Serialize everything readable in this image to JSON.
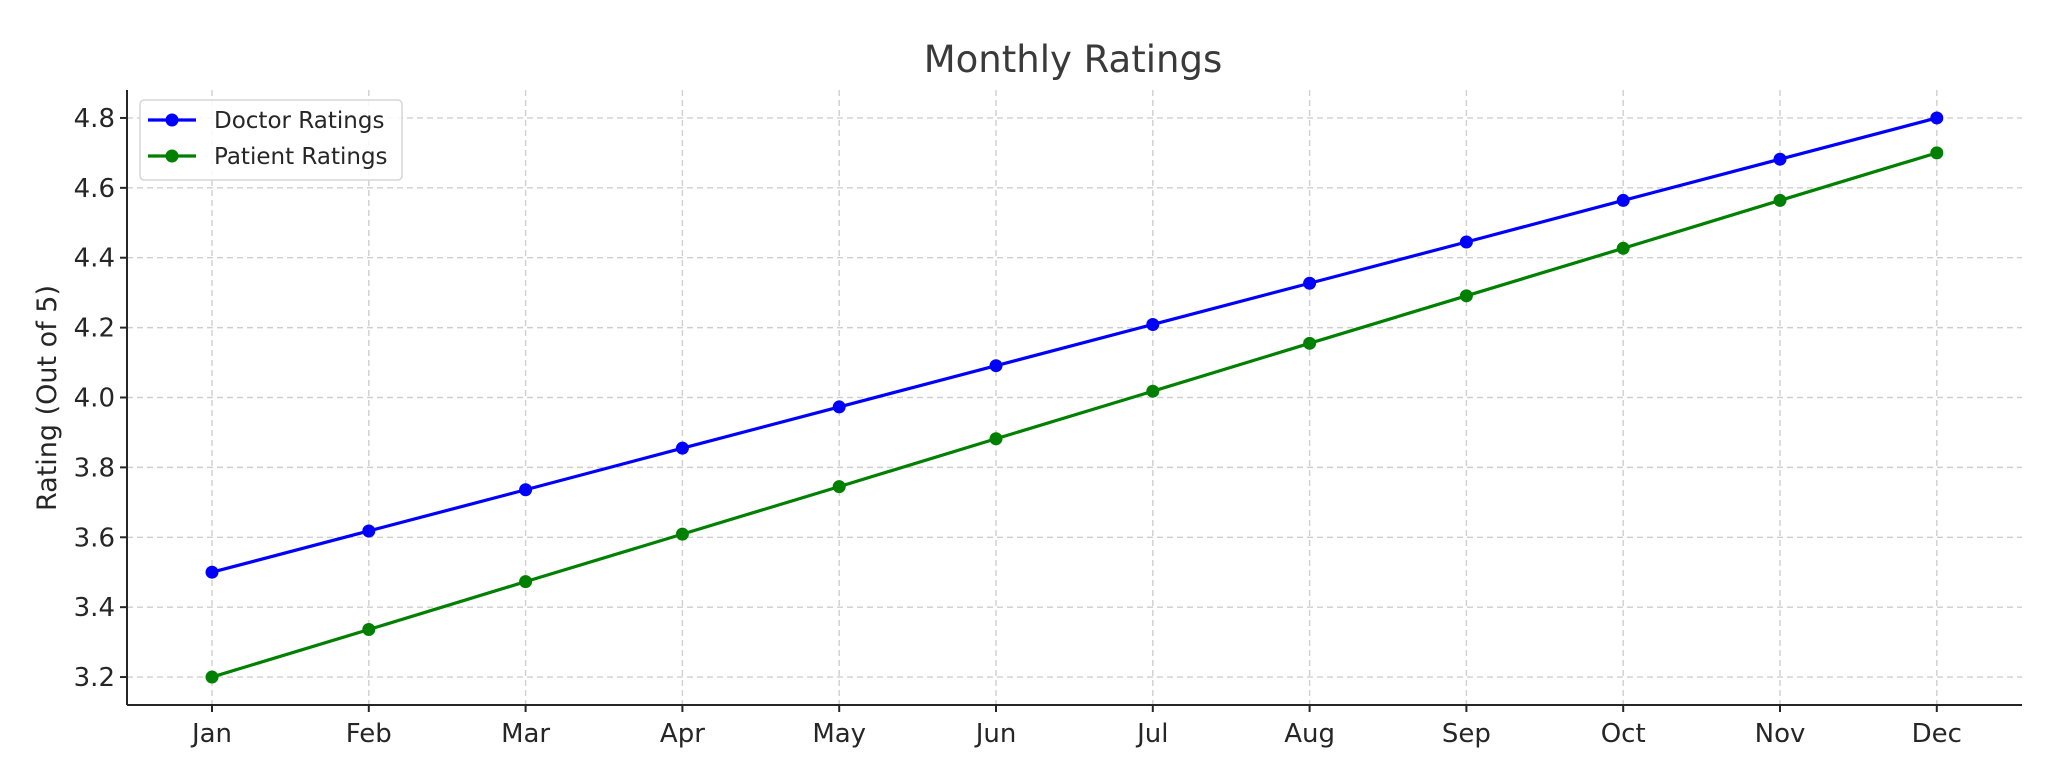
{
  "chart_data": {
    "type": "line",
    "title": "Monthly Ratings",
    "xlabel": "",
    "ylabel": "Rating (Out of 5)",
    "categories": [
      "Jan",
      "Feb",
      "Mar",
      "Apr",
      "May",
      "Jun",
      "Jul",
      "Aug",
      "Sep",
      "Oct",
      "Nov",
      "Dec"
    ],
    "series": [
      {
        "name": "Doctor Ratings",
        "color": "#0000ff",
        "marker": "circle",
        "values": [
          3.5,
          3.618,
          3.736,
          3.855,
          3.973,
          4.091,
          4.209,
          4.327,
          4.445,
          4.564,
          4.682,
          4.8
        ]
      },
      {
        "name": "Patient Ratings",
        "color": "#008000",
        "marker": "circle",
        "values": [
          3.2,
          3.336,
          3.473,
          3.609,
          3.745,
          3.882,
          4.018,
          4.155,
          4.291,
          4.427,
          4.564,
          4.7
        ]
      }
    ],
    "ylim": [
      3.12,
      4.88
    ],
    "yticks": [
      "3.2",
      "3.4",
      "3.6",
      "3.8",
      "4.0",
      "4.2",
      "4.4",
      "4.6",
      "4.8"
    ],
    "grid": true,
    "legend_position": "top-left"
  }
}
